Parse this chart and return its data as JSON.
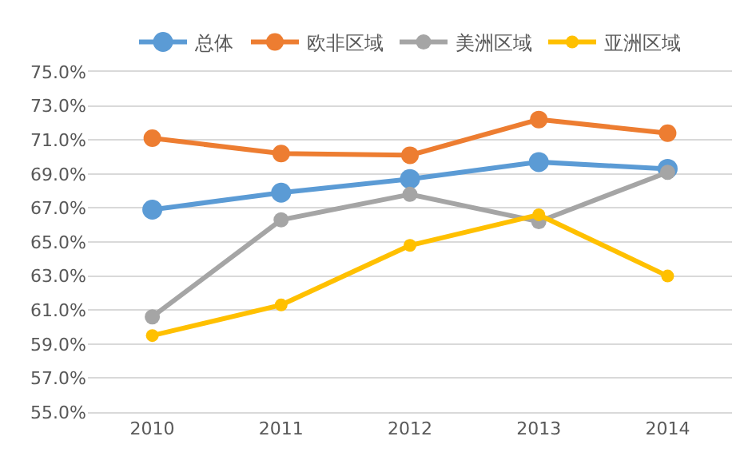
{
  "chart_data": {
    "type": "line",
    "categories": [
      "2010",
      "2011",
      "2012",
      "2013",
      "2014"
    ],
    "series": [
      {
        "name": "总体",
        "color": "#5b9bd5",
        "values": [
          66.9,
          67.9,
          68.7,
          69.7,
          69.3
        ]
      },
      {
        "name": "欧非区域",
        "color": "#ed7d31",
        "values": [
          71.1,
          70.2,
          70.1,
          72.2,
          71.4
        ]
      },
      {
        "name": "美洲区域",
        "color": "#a5a5a5",
        "values": [
          60.6,
          66.3,
          67.8,
          66.2,
          69.1
        ]
      },
      {
        "name": "亚洲区域",
        "color": "#ffc000",
        "values": [
          59.5,
          61.3,
          64.8,
          66.6,
          63.0
        ]
      }
    ],
    "ylim": [
      55,
      75
    ],
    "yticks": [
      {
        "value": 55,
        "label": "55.0%"
      },
      {
        "value": 57,
        "label": "57.0%"
      },
      {
        "value": 59,
        "label": "59.0%"
      },
      {
        "value": 61,
        "label": "61.0%"
      },
      {
        "value": 63,
        "label": "63.0%"
      },
      {
        "value": 65,
        "label": "65.0%"
      },
      {
        "value": 67,
        "label": "67.0%"
      },
      {
        "value": 69,
        "label": "69.0%"
      },
      {
        "value": 71,
        "label": "71.0%"
      },
      {
        "value": 73,
        "label": "73.0%"
      },
      {
        "value": 75,
        "label": "75.0%"
      }
    ],
    "grid": "y",
    "legend": "top",
    "marker": "circle",
    "line_style": "solid"
  }
}
